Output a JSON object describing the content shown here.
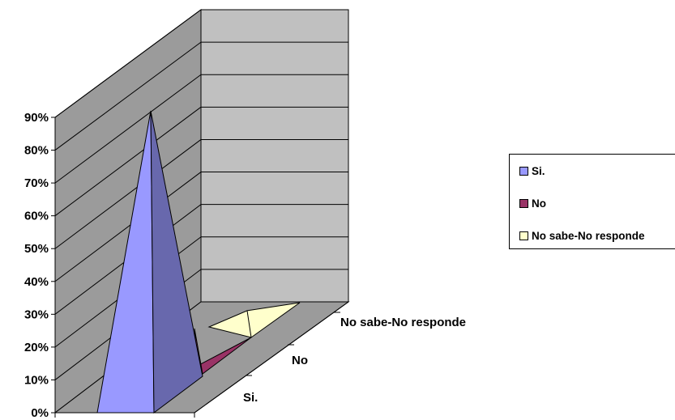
{
  "chart_data": {
    "type": "3d-pyramid-bar",
    "categories": [
      "Si.",
      "No",
      "No sabe-No responde"
    ],
    "values": [
      90,
      3,
      2
    ],
    "ylim": [
      0,
      90
    ],
    "yticks": [
      "0%",
      "10%",
      "20%",
      "30%",
      "40%",
      "50%",
      "60%",
      "70%",
      "80%",
      "90%"
    ],
    "grid": true,
    "legend_position": "right",
    "series": [
      {
        "name": "Si.",
        "color": "#9999ff"
      },
      {
        "name": "No",
        "color": "#993366"
      },
      {
        "name": "No sabe-No responde",
        "color": "#ffffcc"
      }
    ]
  }
}
